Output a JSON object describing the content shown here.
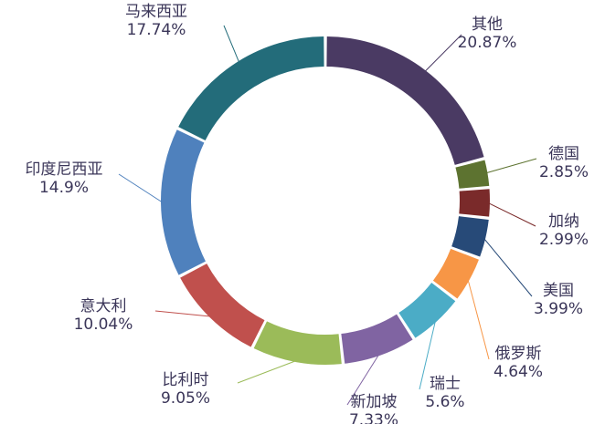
{
  "chart_data": {
    "type": "pie",
    "donut": true,
    "slices": [
      {
        "name": "其他",
        "value": 20.87,
        "label": "20.87%",
        "color": "#4a3a63"
      },
      {
        "name": "德国",
        "value": 2.85,
        "label": "2.85%",
        "color": "#5d7330"
      },
      {
        "name": "加纳",
        "value": 2.99,
        "label": "2.99%",
        "color": "#7a2a2a"
      },
      {
        "name": "美国",
        "value": 3.99,
        "label": "3.99%",
        "color": "#274a78"
      },
      {
        "name": "俄罗斯",
        "value": 4.64,
        "label": "4.64%",
        "color": "#f79646"
      },
      {
        "name": "瑞士",
        "value": 5.6,
        "label": "5.6%",
        "color": "#4bacc6"
      },
      {
        "name": "新加坡",
        "value": 7.33,
        "label": "7.33%",
        "color": "#8064a2"
      },
      {
        "name": "比利时",
        "value": 9.05,
        "label": "9.05%",
        "color": "#9bbb59"
      },
      {
        "name": "意大利",
        "value": 10.04,
        "label": "10.04%",
        "color": "#c0504d"
      },
      {
        "name": "印度尼西亚",
        "value": 14.9,
        "label": "14.9%",
        "color": "#4f81bd"
      },
      {
        "name": "马来西亚",
        "value": 17.74,
        "label": "17.74%",
        "color": "#236c7a"
      }
    ]
  }
}
